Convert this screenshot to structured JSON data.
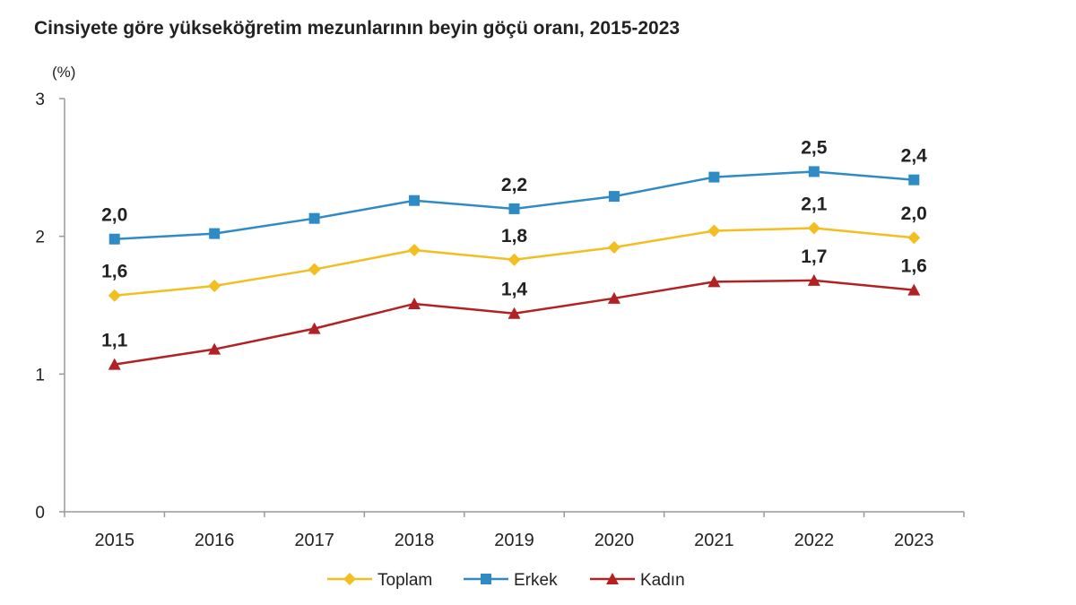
{
  "chart_data": {
    "type": "line",
    "title": "Cinsiyete göre yükseköğretim mezunlarının beyin göçü oranı, 2015-2023",
    "ylabel": "(%)",
    "xlabel": "",
    "ylim": [
      0,
      3
    ],
    "yticks": [
      "0",
      "1",
      "2",
      "3"
    ],
    "categories": [
      "2015",
      "2016",
      "2017",
      "2018",
      "2019",
      "2020",
      "2021",
      "2022",
      "2023"
    ],
    "grid": false,
    "legend_position": "bottom",
    "series": [
      {
        "name": "Toplam",
        "color": "#F2BE20",
        "marker": "diamond",
        "values": [
          1.57,
          1.64,
          1.76,
          1.9,
          1.83,
          1.92,
          2.04,
          2.06,
          1.99
        ],
        "labels": [
          {
            "index": 0,
            "text": "1,6"
          },
          {
            "index": 4,
            "text": "1,8"
          },
          {
            "index": 7,
            "text": "2,1"
          },
          {
            "index": 8,
            "text": "2,0"
          }
        ]
      },
      {
        "name": "Erkek",
        "color": "#2E8BC6",
        "marker": "square",
        "values": [
          1.98,
          2.02,
          2.13,
          2.26,
          2.2,
          2.29,
          2.43,
          2.47,
          2.41
        ],
        "labels": [
          {
            "index": 0,
            "text": "2,0"
          },
          {
            "index": 4,
            "text": "2,2"
          },
          {
            "index": 7,
            "text": "2,5"
          },
          {
            "index": 8,
            "text": "2,4"
          }
        ]
      },
      {
        "name": "Kadın",
        "color": "#B22222",
        "marker": "triangle",
        "values": [
          1.07,
          1.18,
          1.33,
          1.51,
          1.44,
          1.55,
          1.67,
          1.68,
          1.61
        ],
        "labels": [
          {
            "index": 0,
            "text": "1,1"
          },
          {
            "index": 4,
            "text": "1,4"
          },
          {
            "index": 7,
            "text": "1,7"
          },
          {
            "index": 8,
            "text": "1,6"
          }
        ]
      }
    ]
  }
}
